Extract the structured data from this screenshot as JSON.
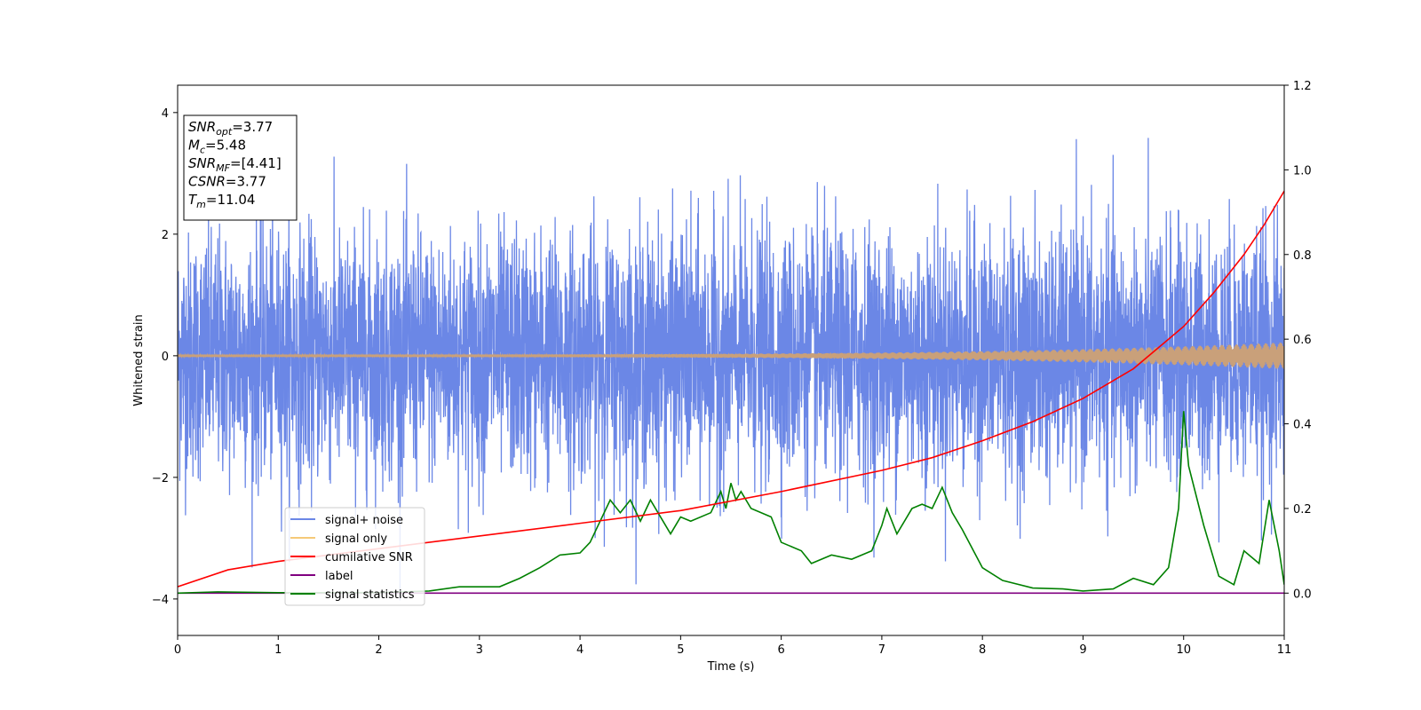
{
  "chart_data": {
    "type": "line",
    "xlabel": "Time (s)",
    "ylabel": "Whitened strain",
    "xlim": [
      0,
      11
    ],
    "ylim_left": [
      -4.6,
      4.45
    ],
    "ylim_right": [
      -0.1,
      1.2
    ],
    "x_ticks": [
      0,
      1,
      2,
      3,
      4,
      5,
      6,
      7,
      8,
      9,
      10,
      11
    ],
    "y_ticks_left": [
      -4,
      -2,
      0,
      2,
      4
    ],
    "y_ticks_right": [
      0.0,
      0.2,
      0.4,
      0.6,
      0.8,
      1.0,
      1.2
    ],
    "grid": false,
    "legend_placement": "lower-left",
    "annotation": {
      "lines": [
        {
          "base": "SNR",
          "sub": "opt",
          "value": "=3.77"
        },
        {
          "base": "M",
          "sub": "c",
          "value": "=5.48"
        },
        {
          "base": "SNR",
          "sub": "MF",
          "value": "=[4.41]"
        },
        {
          "base": "CSNR",
          "sub": "",
          "value": "=3.77"
        },
        {
          "base": "T",
          "sub": "m",
          "value": "=11.04"
        }
      ]
    },
    "series": [
      {
        "name": "signal+ noise",
        "color": "#6b87e6",
        "axis": "left",
        "description_points": "noise band, typical extent about ±1.5, peaks near ±3.8",
        "noise_sigma": 1.0
      },
      {
        "name": "signal only",
        "color": "#f5c978",
        "axis": "left",
        "amplitude_start": 0.02,
        "amplitude_end": 0.22
      },
      {
        "name": "cumilative SNR",
        "color": "#ff0000",
        "axis": "right",
        "x": [
          0,
          0.5,
          1,
          2,
          3,
          4,
          5,
          6,
          7,
          7.5,
          8,
          8.5,
          9,
          9.5,
          10,
          10.3,
          10.6,
          10.8,
          11
        ],
        "y": [
          0.015,
          0.055,
          0.075,
          0.105,
          0.135,
          0.165,
          0.195,
          0.24,
          0.29,
          0.32,
          0.36,
          0.405,
          0.46,
          0.53,
          0.63,
          0.71,
          0.8,
          0.87,
          0.95
        ]
      },
      {
        "name": "label",
        "color": "#800080",
        "axis": "right",
        "x": [
          0,
          11
        ],
        "y": [
          0,
          0
        ]
      },
      {
        "name": "signal statistics",
        "color": "#008000",
        "axis": "right",
        "x": [
          0,
          0.4,
          1.0,
          1.5,
          2.0,
          2.5,
          2.8,
          3.2,
          3.4,
          3.6,
          3.8,
          4.0,
          4.1,
          4.3,
          4.4,
          4.5,
          4.6,
          4.7,
          4.9,
          5.0,
          5.1,
          5.3,
          5.4,
          5.45,
          5.5,
          5.55,
          5.6,
          5.7,
          5.9,
          6.0,
          6.2,
          6.3,
          6.5,
          6.7,
          6.9,
          7.0,
          7.05,
          7.15,
          7.3,
          7.4,
          7.5,
          7.6,
          7.7,
          7.8,
          8.0,
          8.2,
          8.5,
          8.8,
          9.0,
          9.3,
          9.5,
          9.7,
          9.85,
          9.95,
          10.0,
          10.05,
          10.2,
          10.35,
          10.5,
          10.6,
          10.75,
          10.85,
          10.95,
          11.0
        ],
        "y": [
          0.0,
          0.003,
          0.001,
          0.001,
          0.001,
          0.005,
          0.015,
          0.015,
          0.035,
          0.06,
          0.09,
          0.095,
          0.12,
          0.22,
          0.19,
          0.22,
          0.17,
          0.22,
          0.14,
          0.18,
          0.17,
          0.19,
          0.24,
          0.2,
          0.26,
          0.22,
          0.24,
          0.2,
          0.18,
          0.12,
          0.1,
          0.07,
          0.09,
          0.08,
          0.1,
          0.16,
          0.2,
          0.14,
          0.2,
          0.21,
          0.2,
          0.25,
          0.19,
          0.15,
          0.06,
          0.03,
          0.012,
          0.01,
          0.005,
          0.01,
          0.035,
          0.02,
          0.06,
          0.2,
          0.43,
          0.3,
          0.16,
          0.04,
          0.02,
          0.1,
          0.07,
          0.22,
          0.1,
          0.02
        ]
      }
    ]
  }
}
